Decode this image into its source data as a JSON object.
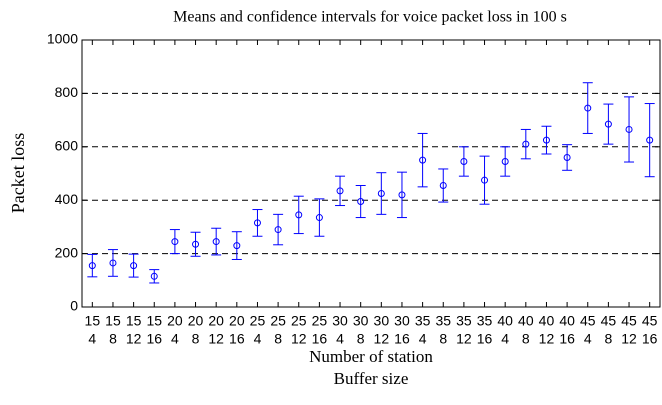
{
  "chart_data": {
    "type": "errorbar",
    "title": "Means and confidence intervals for voice packet loss in 100 s",
    "xlabel": "Number of station",
    "xlabel2": "Buffer size",
    "ylabel": "Packet loss",
    "categories": [
      15,
      15,
      15,
      15,
      20,
      20,
      20,
      20,
      25,
      25,
      25,
      25,
      30,
      30,
      30,
      30,
      35,
      35,
      35,
      35,
      40,
      40,
      40,
      40,
      45,
      45,
      45,
      45
    ],
    "subcategories": [
      4,
      8,
      12,
      16,
      4,
      8,
      12,
      16,
      4,
      8,
      12,
      16,
      4,
      8,
      12,
      16,
      4,
      8,
      12,
      16,
      4,
      8,
      12,
      16,
      4,
      8,
      12,
      16
    ],
    "values": [
      155,
      165,
      155,
      115,
      245,
      235,
      245,
      230,
      315,
      290,
      345,
      335,
      435,
      395,
      425,
      420,
      550,
      455,
      545,
      475,
      545,
      610,
      625,
      560,
      745,
      685,
      665,
      625
    ],
    "errors": [
      42,
      50,
      43,
      25,
      45,
      45,
      50,
      52,
      50,
      57,
      70,
      70,
      55,
      60,
      78,
      85,
      100,
      62,
      55,
      90,
      55,
      55,
      52,
      48,
      95,
      75,
      122,
      137
    ],
    "color": "#0000ff",
    "ylim": [
      0,
      1000
    ],
    "yticks": [
      0,
      200,
      400,
      600,
      800,
      1000
    ],
    "grid": true
  }
}
